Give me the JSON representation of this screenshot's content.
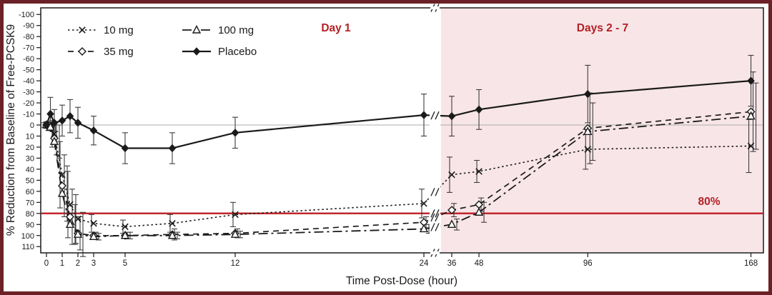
{
  "figure": {
    "border_color": "#6b2126",
    "plot_background": "#ffffff",
    "pink_region_color": "#f8e5e7",
    "accent_red": "#c1272d",
    "annotation_red": "#b42025",
    "series_color": "#1a1a1a",
    "zero_line_color": "#adadad"
  },
  "annotations": {
    "day1_label": "Day 1",
    "days27_label": "Days 2 - 7",
    "eighty_pct_label": "80%"
  },
  "chart_data": {
    "type": "line",
    "title": "",
    "xlabel": "Time Post-Dose (hour)",
    "ylabel": "% Reduction from Baseline of Free-PCSK9",
    "y_axis": {
      "min": -100,
      "max": 110,
      "step": 10,
      "inverted": true,
      "grid": false
    },
    "x_axis": {
      "break_after": 24,
      "segments": [
        {
          "ticks": [
            0,
            1,
            2,
            3,
            5,
            12,
            24
          ]
        },
        {
          "ticks": [
            36,
            48,
            96,
            168
          ]
        }
      ]
    },
    "reference_lines": [
      {
        "value": 0,
        "label": "",
        "color": "#adadad"
      },
      {
        "value": 80,
        "label": "80%",
        "color": "#c1272d"
      }
    ],
    "regions": [
      {
        "label": "Day 1",
        "zone": "pre-break",
        "fill": "#ffffff"
      },
      {
        "label": "Days 2 - 7",
        "zone": "post-break",
        "fill": "#f8e5e7"
      }
    ],
    "legend_position": "top-left",
    "series": [
      {
        "name": "10 mg",
        "line": "dotted",
        "marker": "x",
        "points": [
          {
            "t": 0,
            "v": 0,
            "e": 2
          },
          {
            "t": 0.25,
            "v": 1,
            "e": 4
          },
          {
            "t": 0.5,
            "v": 8,
            "e": 12
          },
          {
            "t": 1,
            "v": 45,
            "e": 30
          },
          {
            "t": 1.5,
            "v": 72,
            "e": 30
          },
          {
            "t": 2,
            "v": 85,
            "e": 22
          },
          {
            "t": 3,
            "v": 89,
            "e": 8
          },
          {
            "t": 5,
            "v": 92,
            "e": 6
          },
          {
            "t": 8,
            "v": 89,
            "e": 8
          },
          {
            "t": 12,
            "v": 81,
            "e": 11
          },
          {
            "t": 24,
            "v": 71,
            "e": 13
          },
          {
            "t": 36,
            "v": 45,
            "e": 16
          },
          {
            "t": 48,
            "v": 42,
            "e": 10
          },
          {
            "t": 96,
            "v": 22,
            "e": 18
          },
          {
            "t": 168,
            "v": 19,
            "e": 24
          }
        ]
      },
      {
        "name": "35 mg",
        "line": "dashed",
        "marker": "diamond-open",
        "points": [
          {
            "t": 0,
            "v": 0,
            "e": 2
          },
          {
            "t": 0.25,
            "v": 2,
            "e": 4
          },
          {
            "t": 0.5,
            "v": 12,
            "e": 15
          },
          {
            "t": 1,
            "v": 55,
            "e": 28
          },
          {
            "t": 1.5,
            "v": 83,
            "e": 25
          },
          {
            "t": 2,
            "v": 98,
            "e": 15
          },
          {
            "t": 3,
            "v": 100,
            "e": 3
          },
          {
            "t": 5,
            "v": 100,
            "e": 3
          },
          {
            "t": 8,
            "v": 99,
            "e": 5
          },
          {
            "t": 12,
            "v": 98,
            "e": 4
          },
          {
            "t": 24,
            "v": 88,
            "e": 5
          },
          {
            "t": 36,
            "v": 77,
            "e": 6
          },
          {
            "t": 48,
            "v": 72,
            "e": 6
          },
          {
            "t": 96,
            "v": 3,
            "e": 32
          },
          {
            "t": 168,
            "v": -12,
            "e": 36
          }
        ]
      },
      {
        "name": "100 mg",
        "line": "dashdot",
        "marker": "triangle-open",
        "points": [
          {
            "t": 0,
            "v": 0,
            "e": 2
          },
          {
            "t": 0.25,
            "v": 2,
            "e": 4
          },
          {
            "t": 0.5,
            "v": 15,
            "e": 15
          },
          {
            "t": 1,
            "v": 62,
            "e": 25
          },
          {
            "t": 1.5,
            "v": 90,
            "e": 18
          },
          {
            "t": 2,
            "v": 99,
            "e": 20
          },
          {
            "t": 3,
            "v": 101,
            "e": 3
          },
          {
            "t": 5,
            "v": 100,
            "e": 3
          },
          {
            "t": 8,
            "v": 100,
            "e": 3
          },
          {
            "t": 12,
            "v": 99,
            "e": 3
          },
          {
            "t": 24,
            "v": 94,
            "e": 4
          },
          {
            "t": 36,
            "v": 90,
            "e": 5
          },
          {
            "t": 48,
            "v": 79,
            "e": 9
          },
          {
            "t": 96,
            "v": 6,
            "e": 26
          },
          {
            "t": 168,
            "v": -8,
            "e": 30
          }
        ]
      },
      {
        "name": "Placebo",
        "line": "solid",
        "marker": "diamond-filled",
        "points": [
          {
            "t": 0,
            "v": 0,
            "e": 3
          },
          {
            "t": 0.25,
            "v": -10,
            "e": 15
          },
          {
            "t": 0.5,
            "v": -2,
            "e": 12
          },
          {
            "t": 1,
            "v": -4,
            "e": 14
          },
          {
            "t": 1.5,
            "v": -8,
            "e": 15
          },
          {
            "t": 2,
            "v": -2,
            "e": 14
          },
          {
            "t": 3,
            "v": 5,
            "e": 13
          },
          {
            "t": 5,
            "v": 21,
            "e": 14
          },
          {
            "t": 8,
            "v": 21,
            "e": 14
          },
          {
            "t": 12,
            "v": 7,
            "e": 14
          },
          {
            "t": 24,
            "v": -9,
            "e": 19
          },
          {
            "t": 36,
            "v": -8,
            "e": 18
          },
          {
            "t": 48,
            "v": -14,
            "e": 18
          },
          {
            "t": 96,
            "v": -28,
            "e": 26
          },
          {
            "t": 168,
            "v": -40,
            "e": 23
          }
        ]
      }
    ]
  }
}
